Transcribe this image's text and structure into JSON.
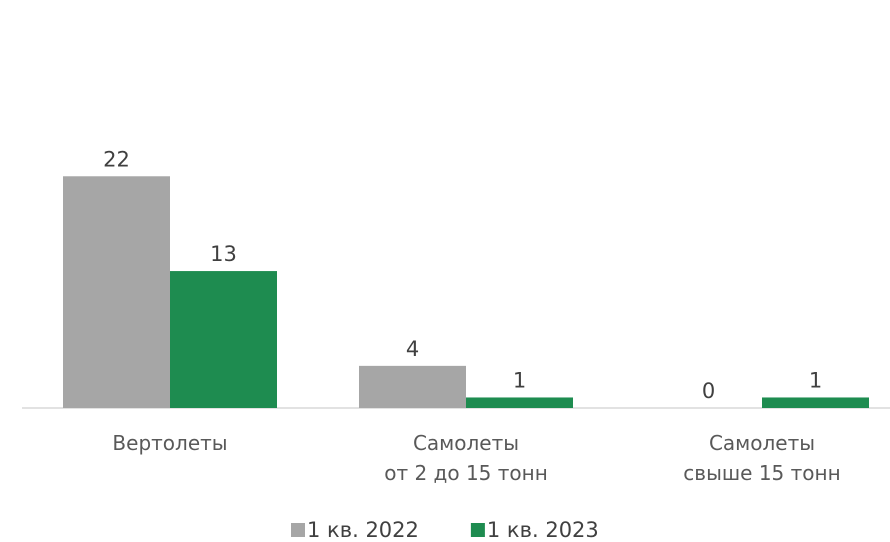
{
  "chart_data": {
    "type": "bar",
    "categories": [
      "Вертолеты",
      "Самолеты\nот 2 до 15 тонн",
      "Самолеты\nсвыше 15 тонн"
    ],
    "series": [
      {
        "name": "1 кв. 2022",
        "color": "#a6a6a6",
        "values": [
          22,
          4,
          0
        ]
      },
      {
        "name": "1 кв. 2023",
        "color": "#1e8c50",
        "values": [
          13,
          1,
          1
        ]
      }
    ],
    "ylim": [
      0,
      30
    ],
    "legend": "bottom"
  }
}
